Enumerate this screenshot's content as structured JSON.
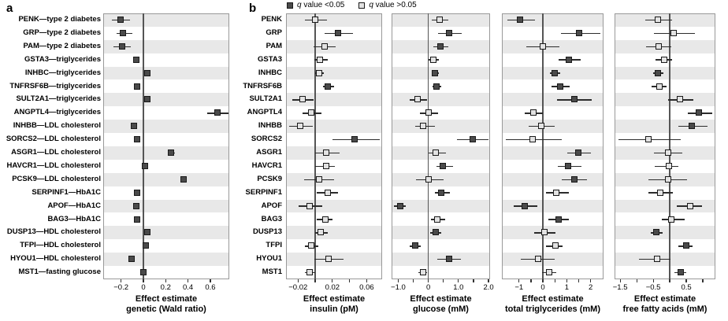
{
  "panel_a": {
    "label": "a"
  },
  "panel_b": {
    "label": "b",
    "legend": [
      {
        "q": "q",
        "text": " value <0.05",
        "significant": true
      },
      {
        "q": "q",
        "text": " value >0.05",
        "significant": false
      }
    ],
    "row_labels": [
      "PENK",
      "GRP",
      "PAM",
      "GSTA3",
      "INHBC",
      "TNFRSF6B",
      "SULT2A1",
      "ANGPTL4",
      "INHBB",
      "SORCS2",
      "ASGR1",
      "HAVCR1",
      "PCSK9",
      "SERPINF1",
      "APOF",
      "BAG3",
      "DUSP13",
      "TFPI",
      "HYOU1",
      "MST1"
    ]
  },
  "colors": {
    "significant": "#4a4a4a",
    "not_significant": "#e2e2e2",
    "marker_border": "#1a1a1a",
    "stripe": "#e8e8e8",
    "plot_border": "#999999",
    "zero_line": "#555555",
    "ci": "#2b2b2b",
    "text": "#000000"
  },
  "chart_data": [
    {
      "type": "forest",
      "panel": "a",
      "xlabel_lines": [
        "Effect estimate",
        "genetic (Wald ratio)"
      ],
      "xlim": [
        -0.36,
        0.77
      ],
      "xticks": [
        -0.2,
        0,
        0.2,
        0.4,
        0.6
      ],
      "xtick_labels": [
        "−0.2",
        "0",
        "0.2",
        "0.4",
        "0.6"
      ],
      "categories": [
        "PENK—type 2 diabetes",
        "GRP—type 2 diabetes",
        "PAM—type 2 diabetes",
        "GSTA3—triglycerides",
        "INHBC—triglycerides",
        "TNFRSF6B—triglycerides",
        "SULT2A1—triglycerides",
        "ANGPTL4—triglycerides",
        "INHBB—LDL cholesterol",
        "SORCS2—LDL cholesterol",
        "ASGR1—LDL cholesterol",
        "HAVCR1—LDL cholesterol",
        "PCSK9—LDL cholesterol",
        "SERPINF1—HbA1C",
        "APOF—HbA1C",
        "BAG3—HbA1C",
        "DUSP13—HDL cholesterol",
        "TFPI—HDL cholesterol",
        "HYOU1—HDL cholesterol",
        "MST1—fasting glucose"
      ],
      "estimates": [
        -0.2,
        -0.18,
        -0.19,
        -0.06,
        0.04,
        -0.05,
        0.04,
        0.67,
        -0.08,
        -0.05,
        0.25,
        0.02,
        0.36,
        -0.05,
        -0.06,
        -0.05,
        0.035,
        0.025,
        -0.1,
        0.005
      ],
      "ci_low": [
        -0.28,
        -0.24,
        -0.27,
        -0.08,
        0.02,
        -0.07,
        0.02,
        0.57,
        -0.1,
        -0.07,
        0.22,
        0.0,
        0.34,
        -0.07,
        -0.08,
        -0.07,
        0.015,
        0.005,
        -0.12,
        -0.01
      ],
      "ci_high": [
        -0.12,
        -0.1,
        -0.11,
        -0.04,
        0.06,
        -0.03,
        0.06,
        0.76,
        -0.06,
        -0.03,
        0.28,
        0.04,
        0.38,
        -0.03,
        -0.04,
        -0.03,
        0.055,
        0.045,
        -0.08,
        0.02
      ],
      "significant": [
        true,
        true,
        true,
        true,
        true,
        true,
        true,
        true,
        true,
        true,
        true,
        true,
        true,
        true,
        true,
        true,
        true,
        true,
        true,
        true
      ]
    },
    {
      "type": "forest",
      "panel": "b",
      "xlabel_lines": [
        "Effect estimate",
        "insulin (pM)"
      ],
      "xlim": [
        -0.034,
        0.078
      ],
      "xticks": [
        -0.02,
        0,
        0.02,
        0.04,
        0.06
      ],
      "xtick_labels": [
        "−0.02",
        "",
        "0.02",
        "",
        "0.06"
      ],
      "categories": [
        "PENK",
        "GRP",
        "PAM",
        "GSTA3",
        "INHBC",
        "TNFRSF6B",
        "SULT2A1",
        "ANGPTL4",
        "INHBB",
        "SORCS2",
        "ASGR1",
        "HAVCR1",
        "PCSK9",
        "SERPINF1",
        "APOF",
        "BAG3",
        "DUSP13",
        "TFPI",
        "HYOU1",
        "MST1"
      ],
      "estimates": [
        0.0,
        0.027,
        0.011,
        0.006,
        0.005,
        0.015,
        -0.014,
        -0.004,
        -0.017,
        0.046,
        0.013,
        0.013,
        0.005,
        0.015,
        -0.006,
        0.012,
        0.007,
        -0.004,
        0.016,
        -0.006
      ],
      "ci_low": [
        -0.012,
        0.011,
        -0.002,
        -0.001,
        0.0,
        0.009,
        -0.027,
        -0.015,
        -0.03,
        0.02,
        0.0,
        0.0,
        -0.013,
        0.002,
        -0.019,
        0.002,
        0.0,
        -0.012,
        -0.001,
        -0.012
      ],
      "ci_high": [
        0.014,
        0.044,
        0.024,
        0.015,
        0.01,
        0.022,
        -0.002,
        0.007,
        -0.003,
        0.075,
        0.028,
        0.023,
        0.022,
        0.027,
        0.008,
        0.02,
        0.015,
        0.004,
        0.033,
        0.0
      ],
      "significant": [
        false,
        true,
        false,
        false,
        false,
        true,
        false,
        false,
        false,
        true,
        false,
        false,
        false,
        false,
        false,
        false,
        false,
        false,
        false,
        false
      ]
    },
    {
      "type": "forest",
      "panel": "b",
      "xlabel_lines": [
        "Effect estimate",
        "glucose (mM)"
      ],
      "xlim": [
        -1.22,
        2.05
      ],
      "xticks": [
        -1.0,
        -0.5,
        0,
        0.5,
        1.0,
        1.5,
        2.0
      ],
      "xtick_labels": [
        "−1.0",
        "",
        "0",
        "",
        "1.0",
        "",
        "2.0"
      ],
      "categories": [
        "PENK",
        "GRP",
        "PAM",
        "GSTA3",
        "INHBC",
        "TNFRSF6B",
        "SULT2A1",
        "ANGPTL4",
        "INHBB",
        "SORCS2",
        "ASGR1",
        "HAVCR1",
        "PCSK9",
        "SERPINF1",
        "APOF",
        "BAG3",
        "DUSP13",
        "TFPI",
        "HYOU1",
        "MST1"
      ],
      "estimates": [
        0.39,
        0.71,
        0.41,
        0.17,
        0.24,
        0.28,
        -0.35,
        0.02,
        -0.16,
        1.48,
        0.26,
        0.5,
        0.02,
        0.45,
        -0.93,
        0.3,
        0.26,
        -0.43,
        0.69,
        -0.17
      ],
      "ci_low": [
        0.11,
        0.32,
        0.17,
        0.02,
        0.11,
        0.13,
        -0.61,
        -0.28,
        -0.43,
        0.95,
        0.0,
        0.28,
        -0.42,
        0.22,
        -1.13,
        0.09,
        0.07,
        -0.61,
        0.3,
        -0.32
      ],
      "ci_high": [
        0.67,
        1.1,
        0.67,
        0.35,
        0.36,
        0.43,
        -0.03,
        0.32,
        0.22,
        2.0,
        0.58,
        0.83,
        0.5,
        0.72,
        -0.74,
        0.55,
        0.43,
        -0.26,
        1.08,
        -0.03
      ],
      "significant": [
        false,
        true,
        true,
        false,
        true,
        true,
        false,
        false,
        false,
        true,
        false,
        true,
        false,
        true,
        true,
        false,
        true,
        true,
        true,
        false
      ]
    },
    {
      "type": "forest",
      "panel": "b",
      "xlabel_lines": [
        "Effect estimate",
        "total triglycerides (mM)"
      ],
      "xlim": [
        -1.72,
        2.54
      ],
      "xticks": [
        -1,
        -0.5,
        0,
        0.5,
        1,
        1.5,
        2
      ],
      "xtick_labels": [
        "−1",
        "",
        "0",
        "",
        "1",
        "",
        "2"
      ],
      "categories": [
        "PENK",
        "GRP",
        "PAM",
        "GSTA3",
        "INHBC",
        "TNFRSF6B",
        "SULT2A1",
        "ANGPTL4",
        "INHBB",
        "SORCS2",
        "ASGR1",
        "HAVCR1",
        "PCSK9",
        "SERPINF1",
        "APOF",
        "BAG3",
        "DUSP13",
        "TFPI",
        "HYOU1",
        "MST1"
      ],
      "estimates": [
        -0.95,
        1.54,
        0.0,
        1.1,
        0.5,
        0.73,
        1.32,
        -0.39,
        -0.06,
        -0.41,
        1.49,
        1.08,
        1.32,
        0.58,
        -0.74,
        0.67,
        0.09,
        0.53,
        -0.19,
        0.27
      ],
      "ci_low": [
        -1.5,
        0.77,
        -0.68,
        0.67,
        0.29,
        0.36,
        0.6,
        -0.77,
        -0.59,
        -1.54,
        1.02,
        0.64,
        0.78,
        0.14,
        -1.23,
        0.23,
        -0.37,
        0.14,
        -0.93,
        -0.04
      ],
      "ci_high": [
        -0.32,
        2.4,
        0.69,
        1.59,
        0.73,
        1.13,
        2.05,
        0.0,
        0.5,
        0.8,
        2.01,
        1.63,
        1.85,
        1.08,
        -0.24,
        1.1,
        0.53,
        0.83,
        0.5,
        0.56
      ],
      "significant": [
        true,
        true,
        false,
        true,
        true,
        true,
        true,
        false,
        false,
        false,
        true,
        true,
        true,
        false,
        true,
        true,
        false,
        false,
        false,
        false
      ]
    },
    {
      "type": "forest",
      "panel": "b",
      "xlabel_lines": [
        "Effect estimate",
        "free fatty acids (mM)"
      ],
      "xlim": [
        -1.67,
        1.38
      ],
      "xticks": [
        -1.5,
        -1.0,
        -0.5,
        0,
        0.5,
        1.0
      ],
      "xtick_labels": [
        "−1.5",
        "",
        "−0.5",
        "",
        "0.5",
        ""
      ],
      "categories": [
        "PENK",
        "GRP",
        "PAM",
        "GSTA3",
        "INHBC",
        "TNFRSF6B",
        "SULT2A1",
        "ANGPTL4",
        "INHBB",
        "SORCS2",
        "ASGR1",
        "HAVCR1",
        "PCSK9",
        "SERPINF1",
        "APOF",
        "BAG3",
        "DUSP13",
        "TFPI",
        "HYOU1",
        "MST1"
      ],
      "estimates": [
        -0.36,
        0.13,
        -0.33,
        -0.17,
        -0.36,
        -0.31,
        0.31,
        0.88,
        0.68,
        -0.63,
        -0.05,
        -0.02,
        -0.05,
        -0.27,
        0.63,
        0.06,
        -0.4,
        0.5,
        -0.37,
        0.33
      ],
      "ci_low": [
        -0.75,
        -0.47,
        -0.71,
        -0.43,
        -0.51,
        -0.55,
        -0.05,
        0.55,
        0.25,
        -1.56,
        -0.48,
        -0.45,
        -0.64,
        -0.64,
        0.21,
        -0.25,
        -0.57,
        0.26,
        -0.94,
        0.15
      ],
      "ci_high": [
        0.06,
        0.76,
        0.05,
        0.06,
        -0.19,
        -0.09,
        0.71,
        1.28,
        1.14,
        0.33,
        0.38,
        0.26,
        0.52,
        0.09,
        0.98,
        0.46,
        -0.21,
        0.7,
        0.03,
        0.5
      ],
      "significant": [
        false,
        false,
        false,
        false,
        true,
        false,
        false,
        true,
        true,
        false,
        false,
        false,
        false,
        false,
        false,
        false,
        true,
        true,
        false,
        true
      ]
    }
  ]
}
